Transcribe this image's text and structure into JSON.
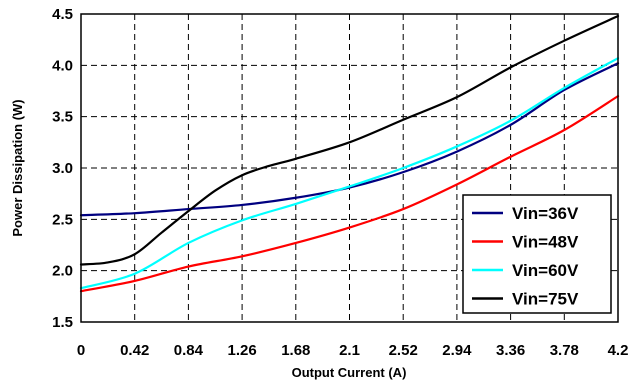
{
  "chart_data": {
    "type": "line",
    "title": "",
    "xlabel": "Output Current (A)",
    "ylabel": "Power Dissipation (W)",
    "xlim": [
      0,
      4.2
    ],
    "ylim": [
      1.5,
      4.5
    ],
    "xticks": [
      0,
      0.42,
      0.84,
      1.26,
      1.68,
      2.1,
      2.52,
      2.94,
      3.36,
      3.78,
      4.2
    ],
    "xtick_labels": [
      "0",
      "0.42",
      "0.84",
      "1.26",
      "1.68",
      "2.1",
      "2.52",
      "2.94",
      "3.36",
      "3.78",
      "4.2"
    ],
    "yticks": [
      1.5,
      2.0,
      2.5,
      3.0,
      3.5,
      4.0,
      4.5
    ],
    "ytick_labels": [
      "1.5",
      "2.0",
      "2.5",
      "3.0",
      "3.5",
      "4.0",
      "4.5"
    ],
    "grid": true,
    "legend": "bottom-right",
    "series": [
      {
        "name": "Vin=36V",
        "color": "#000080",
        "x": [
          0,
          0.42,
          0.84,
          1.26,
          1.68,
          2.1,
          2.52,
          2.94,
          3.36,
          3.78,
          4.2
        ],
        "y": [
          2.54,
          2.56,
          2.6,
          2.64,
          2.71,
          2.81,
          2.96,
          3.16,
          3.42,
          3.76,
          4.02
        ]
      },
      {
        "name": "Vin=48V",
        "color": "#ff0000",
        "x": [
          0,
          0.42,
          0.84,
          1.26,
          1.68,
          2.1,
          2.52,
          2.94,
          3.36,
          3.78,
          4.2
        ],
        "y": [
          1.8,
          1.9,
          2.04,
          2.14,
          2.27,
          2.42,
          2.6,
          2.84,
          3.11,
          3.37,
          3.7
        ]
      },
      {
        "name": "Vin=60V",
        "color": "#00ffff",
        "x": [
          0,
          0.42,
          0.84,
          1.26,
          1.68,
          2.1,
          2.52,
          2.94,
          3.36,
          3.78,
          4.2
        ],
        "y": [
          1.83,
          1.97,
          2.27,
          2.49,
          2.65,
          2.82,
          3.0,
          3.21,
          3.46,
          3.78,
          4.07
        ]
      },
      {
        "name": "Vin=75V",
        "color": "#000000",
        "x": [
          0,
          0.21,
          0.42,
          0.63,
          0.84,
          1.05,
          1.26,
          1.47,
          1.68,
          2.1,
          2.52,
          2.94,
          3.36,
          3.78,
          4.2
        ],
        "y": [
          2.06,
          2.08,
          2.16,
          2.37,
          2.58,
          2.78,
          2.93,
          3.02,
          3.09,
          3.25,
          3.47,
          3.69,
          3.98,
          4.24,
          4.48
        ]
      }
    ]
  }
}
